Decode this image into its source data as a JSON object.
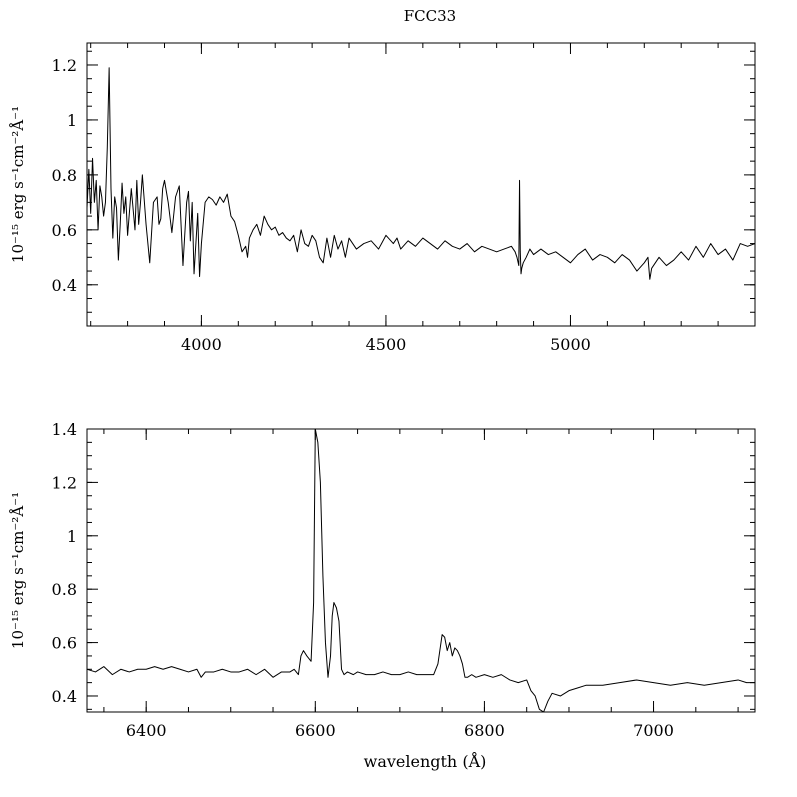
{
  "title": "FCC33",
  "chart_data": [
    {
      "type": "line",
      "ylabel": "10⁻¹⁵ erg s⁻¹cm⁻²Å⁻¹",
      "xlabel": "",
      "xlim": [
        3690,
        5500
      ],
      "ylim": [
        0.25,
        1.28
      ],
      "x_ticks": [
        4000,
        4500,
        5000
      ],
      "y_ticks": [
        0.4,
        0.6,
        0.8,
        1,
        1.2
      ],
      "series": [
        {
          "x": [
            3690,
            3695,
            3700,
            3705,
            3710,
            3715,
            3720,
            3725,
            3730,
            3735,
            3740,
            3745,
            3750,
            3755,
            3760,
            3765,
            3770,
            3775,
            3780,
            3785,
            3790,
            3795,
            3800,
            3810,
            3820,
            3825,
            3830,
            3835,
            3840,
            3850,
            3860,
            3870,
            3880,
            3885,
            3890,
            3895,
            3900,
            3910,
            3920,
            3930,
            3940,
            3950,
            3960,
            3965,
            3970,
            3975,
            3980,
            3990,
            3995,
            4000,
            4010,
            4020,
            4030,
            4040,
            4050,
            4060,
            4070,
            4080,
            4090,
            4100,
            4110,
            4120,
            4125,
            4130,
            4140,
            4150,
            4160,
            4170,
            4180,
            4190,
            4200,
            4210,
            4220,
            4230,
            4240,
            4250,
            4260,
            4270,
            4280,
            4290,
            4300,
            4310,
            4320,
            4330,
            4340,
            4350,
            4360,
            4370,
            4380,
            4390,
            4400,
            4420,
            4440,
            4460,
            4480,
            4500,
            4520,
            4530,
            4540,
            4560,
            4580,
            4600,
            4620,
            4640,
            4660,
            4680,
            4700,
            4720,
            4740,
            4760,
            4780,
            4800,
            4820,
            4840,
            4850,
            4855,
            4860,
            4862,
            4864,
            4866,
            4868,
            4872,
            4880,
            4890,
            4900,
            4920,
            4940,
            4960,
            4980,
            5000,
            5020,
            5040,
            5060,
            5080,
            5100,
            5120,
            5140,
            5160,
            5180,
            5200,
            5210,
            5215,
            5220,
            5240,
            5260,
            5280,
            5300,
            5320,
            5340,
            5360,
            5380,
            5400,
            5420,
            5440,
            5460,
            5480,
            5500
          ],
          "y": [
            0.68,
            0.82,
            0.66,
            0.86,
            0.7,
            0.78,
            0.6,
            0.76,
            0.72,
            0.65,
            0.7,
            0.9,
            1.19,
            0.75,
            0.57,
            0.72,
            0.68,
            0.49,
            0.62,
            0.77,
            0.66,
            0.72,
            0.58,
            0.75,
            0.6,
            0.78,
            0.62,
            0.7,
            0.8,
            0.62,
            0.48,
            0.7,
            0.72,
            0.62,
            0.64,
            0.75,
            0.78,
            0.7,
            0.59,
            0.72,
            0.76,
            0.47,
            0.7,
            0.74,
            0.56,
            0.7,
            0.44,
            0.66,
            0.43,
            0.55,
            0.7,
            0.72,
            0.71,
            0.69,
            0.72,
            0.7,
            0.73,
            0.65,
            0.63,
            0.58,
            0.52,
            0.54,
            0.5,
            0.57,
            0.6,
            0.62,
            0.58,
            0.65,
            0.62,
            0.6,
            0.61,
            0.58,
            0.59,
            0.57,
            0.56,
            0.58,
            0.52,
            0.6,
            0.55,
            0.54,
            0.58,
            0.56,
            0.5,
            0.48,
            0.57,
            0.5,
            0.58,
            0.53,
            0.56,
            0.5,
            0.57,
            0.53,
            0.55,
            0.56,
            0.53,
            0.58,
            0.55,
            0.57,
            0.53,
            0.56,
            0.54,
            0.57,
            0.55,
            0.53,
            0.56,
            0.54,
            0.53,
            0.55,
            0.52,
            0.54,
            0.53,
            0.52,
            0.53,
            0.54,
            0.52,
            0.5,
            0.47,
            0.78,
            0.52,
            0.44,
            0.46,
            0.48,
            0.5,
            0.53,
            0.51,
            0.53,
            0.51,
            0.52,
            0.5,
            0.48,
            0.51,
            0.53,
            0.49,
            0.51,
            0.5,
            0.48,
            0.51,
            0.49,
            0.45,
            0.48,
            0.5,
            0.42,
            0.46,
            0.5,
            0.47,
            0.49,
            0.52,
            0.49,
            0.54,
            0.5,
            0.55,
            0.51,
            0.53,
            0.49,
            0.55,
            0.54,
            0.55
          ]
        }
      ]
    },
    {
      "type": "line",
      "ylabel": "10⁻¹⁵ erg s⁻¹cm⁻²Å⁻¹",
      "xlabel": "wavelength (Å)",
      "xlim": [
        6330,
        7120
      ],
      "ylim": [
        0.34,
        1.4
      ],
      "x_ticks": [
        6400,
        6600,
        6800,
        7000
      ],
      "y_ticks": [
        0.4,
        0.6,
        0.8,
        1,
        1.2,
        1.4
      ],
      "series": [
        {
          "x": [
            6330,
            6340,
            6350,
            6360,
            6370,
            6380,
            6390,
            6400,
            6410,
            6420,
            6430,
            6440,
            6450,
            6460,
            6465,
            6470,
            6480,
            6490,
            6500,
            6510,
            6520,
            6530,
            6540,
            6550,
            6560,
            6570,
            6575,
            6580,
            6583,
            6586,
            6590,
            6595,
            6598,
            6600,
            6603,
            6606,
            6609,
            6612,
            6615,
            6618,
            6620,
            6622,
            6625,
            6628,
            6631,
            6634,
            6638,
            6645,
            6650,
            6660,
            6670,
            6680,
            6690,
            6700,
            6710,
            6720,
            6730,
            6740,
            6745,
            6750,
            6753,
            6756,
            6759,
            6762,
            6765,
            6768,
            6771,
            6774,
            6777,
            6780,
            6785,
            6790,
            6800,
            6810,
            6820,
            6830,
            6840,
            6850,
            6855,
            6860,
            6865,
            6870,
            6875,
            6880,
            6890,
            6900,
            6910,
            6920,
            6940,
            6960,
            6980,
            7000,
            7020,
            7040,
            7060,
            7080,
            7100,
            7110,
            7120
          ],
          "y": [
            0.5,
            0.49,
            0.51,
            0.48,
            0.5,
            0.49,
            0.5,
            0.5,
            0.51,
            0.5,
            0.51,
            0.5,
            0.49,
            0.5,
            0.47,
            0.49,
            0.49,
            0.5,
            0.49,
            0.49,
            0.5,
            0.48,
            0.5,
            0.47,
            0.49,
            0.49,
            0.5,
            0.48,
            0.55,
            0.57,
            0.55,
            0.53,
            0.75,
            1.4,
            1.35,
            1.2,
            0.85,
            0.6,
            0.47,
            0.55,
            0.7,
            0.75,
            0.73,
            0.68,
            0.5,
            0.48,
            0.49,
            0.48,
            0.49,
            0.48,
            0.48,
            0.49,
            0.48,
            0.48,
            0.49,
            0.48,
            0.48,
            0.48,
            0.52,
            0.63,
            0.62,
            0.57,
            0.6,
            0.55,
            0.58,
            0.57,
            0.55,
            0.52,
            0.47,
            0.47,
            0.48,
            0.47,
            0.48,
            0.47,
            0.48,
            0.46,
            0.45,
            0.46,
            0.42,
            0.4,
            0.35,
            0.34,
            0.38,
            0.41,
            0.4,
            0.42,
            0.43,
            0.44,
            0.44,
            0.45,
            0.46,
            0.45,
            0.44,
            0.45,
            0.44,
            0.45,
            0.46,
            0.45,
            0.45
          ]
        }
      ]
    }
  ]
}
